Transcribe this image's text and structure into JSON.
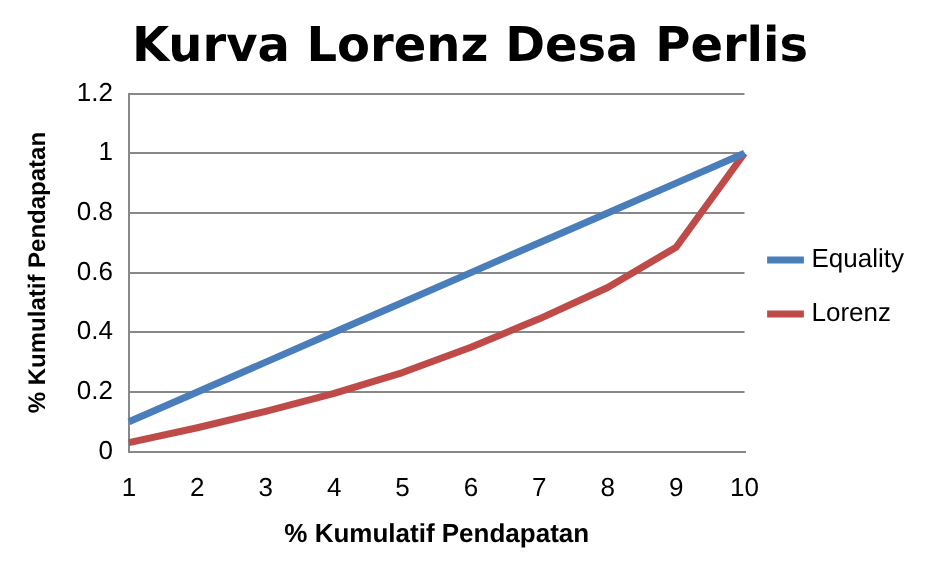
{
  "chart_data": {
    "type": "line",
    "title": "Kurva Lorenz Desa Perlis",
    "xlabel": "% Kumulatif Pendapatan",
    "ylabel": "% Kumulatif Pendapatan",
    "categories": [
      "1",
      "2",
      "3",
      "4",
      "5",
      "6",
      "7",
      "8",
      "9",
      "10"
    ],
    "series": [
      {
        "name": "Equality",
        "color": "#4a7ebb",
        "values": [
          0.1,
          0.2,
          0.3,
          0.4,
          0.5,
          0.6,
          0.7,
          0.8,
          0.9,
          1.0
        ]
      },
      {
        "name": "Lorenz",
        "color": "#be4b48",
        "values": [
          0.03,
          0.08,
          0.135,
          0.195,
          0.265,
          0.35,
          0.445,
          0.55,
          0.685,
          1.0
        ]
      }
    ],
    "ylim": [
      0,
      1.2
    ],
    "yticks": [
      0,
      {
        "value": 0.2,
        "label": "0.2"
      },
      {
        "value": 0.4,
        "label": "0.4"
      },
      {
        "value": 0.6,
        "label": "0.6"
      },
      {
        "value": 0.8,
        "label": "0.8"
      },
      1,
      {
        "value": 1.2,
        "label": "1.2"
      }
    ],
    "grid": "y",
    "legend": "right",
    "marker": "none",
    "line_style": "solid"
  }
}
